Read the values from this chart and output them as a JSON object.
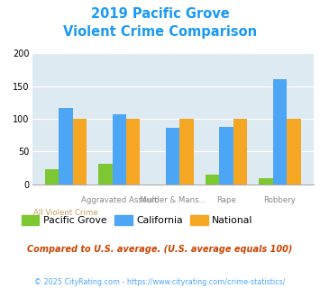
{
  "title_line1": "2019 Pacific Grove",
  "title_line2": "Violent Crime Comparison",
  "title_color": "#1a9af5",
  "categories": [
    "All Violent Crime",
    "Aggravated Assault",
    "Murder & Mans...",
    "Rape",
    "Robbery"
  ],
  "pacific_grove": [
    23,
    31,
    0,
    15,
    9
  ],
  "california": [
    117,
    107,
    86,
    87,
    161
  ],
  "national": [
    100,
    100,
    100,
    100,
    100
  ],
  "color_pg": "#7dc832",
  "color_ca": "#4da6f5",
  "color_nat": "#f5a623",
  "ylim": [
    0,
    200
  ],
  "yticks": [
    0,
    50,
    100,
    150,
    200
  ],
  "bg_color": "#deeaf1",
  "footnote1": "Compared to U.S. average. (U.S. average equals 100)",
  "footnote2": "© 2025 CityRating.com - https://www.cityrating.com/crime-statistics/",
  "footnote1_color": "#cc4400",
  "footnote2_color": "#4da6f5",
  "legend_labels": [
    "Pacific Grove",
    "California",
    "National"
  ],
  "top_xlabels": [
    "",
    "Aggravated Assault",
    "Murder & Mans...",
    "Rape",
    "Robbery"
  ],
  "bottom_xlabels": [
    "All Violent Crime",
    "",
    "",
    "",
    ""
  ]
}
